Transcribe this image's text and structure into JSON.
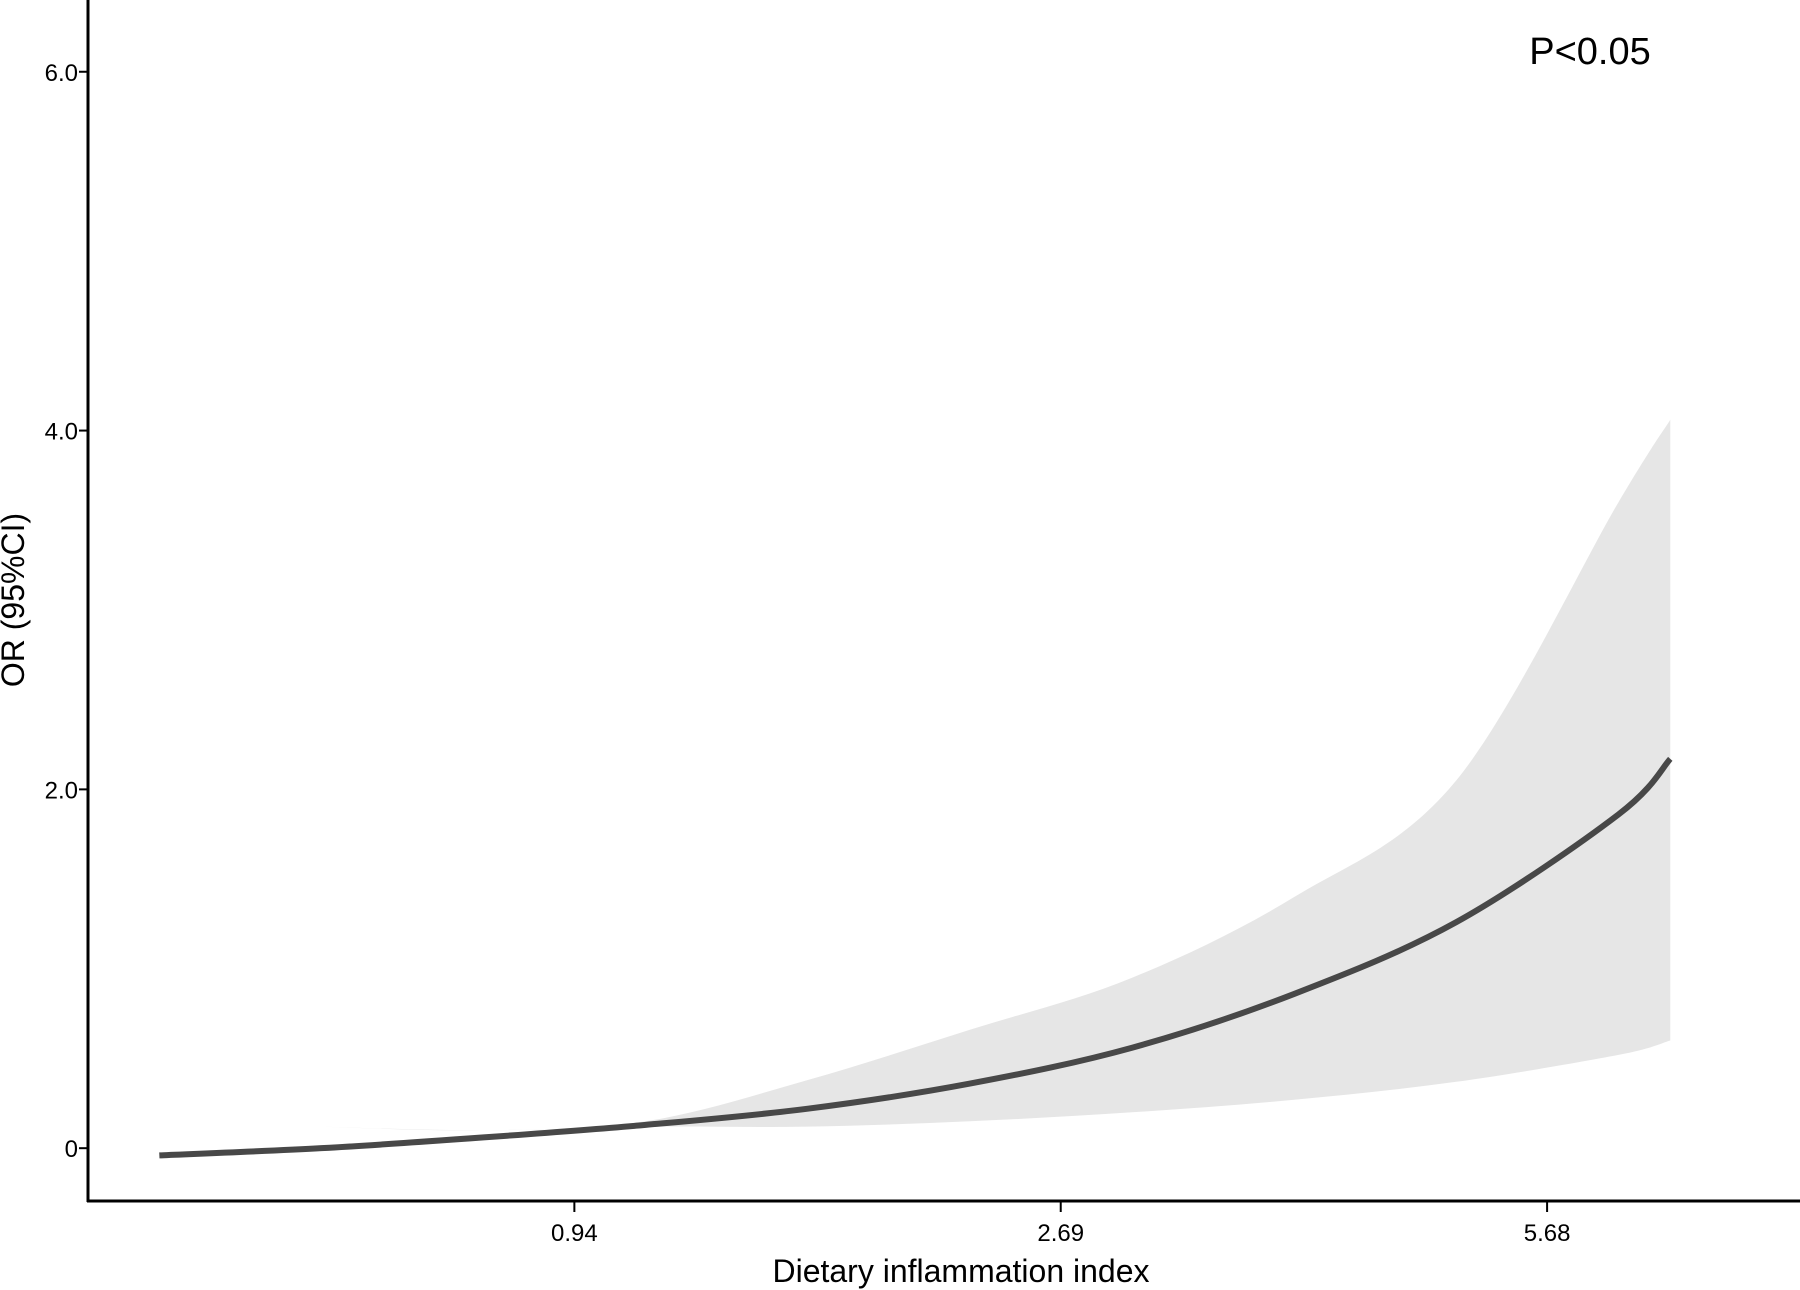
{
  "chart_data": {
    "type": "line",
    "title": "",
    "xlabel": "Dietary inflammation index",
    "ylabel": "OR (95%CI)",
    "annotation": "P<0.05",
    "x_ticks": [
      {
        "label": "0.94",
        "pos": 1.5
      },
      {
        "label": "2.69",
        "pos": 3.0
      },
      {
        "label": "5.68",
        "pos": 4.5
      }
    ],
    "y_ticks": [
      {
        "label": "0",
        "value": 0
      },
      {
        "label": "2.0",
        "value": 2.0
      },
      {
        "label": "4.0",
        "value": 4.0
      },
      {
        "label": "6.0",
        "value": 6.0
      }
    ],
    "xlim": [
      0,
      5.28
    ],
    "ylim": [
      -0.3,
      6.4
    ],
    "grid": false,
    "colors": {
      "line": "#484848",
      "band": "#e6e6e6",
      "axis": "#000000"
    },
    "series": [
      {
        "x": [
          0.22,
          0.72,
          1.22,
          1.72,
          2.22,
          2.72,
          3.22,
          3.72,
          4.22,
          4.72,
          4.88
        ],
        "y": [
          -0.04,
          0.0,
          0.06,
          0.13,
          0.22,
          0.36,
          0.56,
          0.86,
          1.26,
          1.86,
          2.17
        ],
        "lower": [
          0.16,
          0.12,
          0.1,
          0.12,
          0.12,
          0.15,
          0.2,
          0.27,
          0.37,
          0.52,
          0.6
        ],
        "upper": [
          0.16,
          0.12,
          0.1,
          0.15,
          0.38,
          0.66,
          0.95,
          1.4,
          2.05,
          3.6,
          4.06
        ]
      }
    ]
  }
}
